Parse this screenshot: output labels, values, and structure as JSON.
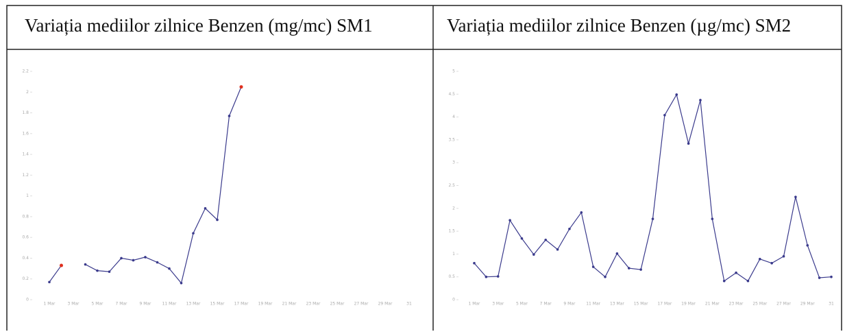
{
  "chart_data": [
    {
      "type": "line",
      "title": "Variația mediilor zilnice Benzen (mg/mc) SM1",
      "categories": [
        "1 Mar",
        null,
        "3 Mar",
        null,
        "5 Mar",
        null,
        "7 Mar",
        null,
        "9 Mar",
        null,
        "11 Mar",
        null,
        "13 Mar",
        null,
        "15 Mar",
        null,
        "17 Mar",
        null,
        "19 Mar",
        null,
        "21 Mar",
        null,
        "23 Mar",
        null,
        "25 Mar",
        null,
        "27 Mar",
        null,
        "29 Mar",
        null,
        "31"
      ],
      "series": [
        {
          "color": "#3a3a8c",
          "highlight_color": "#e0301e",
          "highlight": [
            1,
            16
          ],
          "values": [
            0.17,
            0.33,
            null,
            0.34,
            0.28,
            0.27,
            0.4,
            0.38,
            0.41,
            0.36,
            0.3,
            0.16,
            0.64,
            0.88,
            0.77,
            1.77,
            2.05,
            null,
            null,
            null,
            null,
            null,
            null,
            null,
            null,
            null,
            null,
            null,
            null,
            null,
            null
          ]
        }
      ],
      "ylim": [
        0,
        2.2
      ],
      "yticks": [
        0,
        0.2,
        0.4,
        0.6,
        0.8,
        1,
        1.2,
        1.4,
        1.6,
        1.8,
        2,
        2.2
      ]
    },
    {
      "type": "line",
      "title": "Variația mediilor zilnice Benzen  (µg/mc) SM2",
      "categories": [
        "1 Mar",
        null,
        "3 Mar",
        null,
        "5 Mar",
        null,
        "7 Mar",
        null,
        "9 Mar",
        null,
        "11 Mar",
        null,
        "13 Mar",
        null,
        "15 Mar",
        null,
        "17 Mar",
        null,
        "19 Mar",
        null,
        "21 Mar",
        null,
        "23 Mar",
        null,
        "25 Mar",
        null,
        "27 Mar",
        null,
        "29 Mar",
        null,
        "31"
      ],
      "series": [
        {
          "color": "#3a3a8c",
          "values": [
            0.8,
            0.5,
            0.51,
            1.74,
            1.34,
            0.99,
            1.31,
            1.1,
            1.55,
            1.91,
            0.72,
            0.5,
            1.01,
            0.69,
            0.66,
            1.77,
            4.04,
            4.49,
            3.42,
            4.37,
            1.77,
            0.41,
            0.59,
            0.41,
            0.89,
            0.8,
            0.95,
            2.25,
            1.19,
            0.48,
            0.5
          ]
        }
      ],
      "ylim": [
        0,
        5
      ],
      "yticks": [
        0,
        0.5,
        1,
        1.5,
        2,
        2.5,
        3,
        3.5,
        4,
        4.5,
        5
      ]
    }
  ]
}
